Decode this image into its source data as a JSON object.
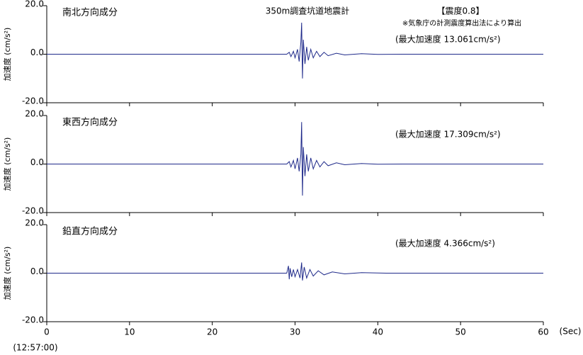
{
  "chart_data": [
    {
      "type": "line",
      "title": "350m調査坑道地震計",
      "intensity": "【震度0.8】",
      "note": "※気象庁の計測震度算出法により算出",
      "panel_title": "南北方向成分",
      "peak_label": "(最大加速度 13.061cm/s²)",
      "ylabel": "加速度 (cm/s²)",
      "color": "#1f2a8a",
      "xlim": [
        0,
        60
      ],
      "xticks": [
        0,
        10,
        20,
        30,
        40,
        50,
        60
      ],
      "x_tick_labels": false,
      "ylim": [
        -20,
        20
      ],
      "yticks": [
        {
          "value": 20,
          "label": "20.0"
        },
        {
          "value": 0,
          "label": "0.0"
        },
        {
          "value": -20,
          "label": "-20.0"
        }
      ],
      "x": [
        0,
        29.0,
        29.3,
        29.5,
        29.8,
        30.0,
        30.3,
        30.5,
        30.7,
        30.8,
        30.9,
        31.0,
        31.2,
        31.4,
        31.6,
        31.9,
        32.2,
        32.6,
        33.0,
        33.5,
        34.0,
        35.0,
        36.0,
        38.0,
        40.0,
        43.0,
        60
      ],
      "values": [
        0,
        0,
        0.8,
        -1,
        1.2,
        -1.5,
        2,
        -3,
        5,
        13,
        -10,
        6,
        -4,
        3,
        -2.5,
        2,
        -1.5,
        1.2,
        -1,
        0.8,
        -0.6,
        0.4,
        -0.3,
        0.2,
        -0.1,
        0,
        0
      ]
    },
    {
      "type": "line",
      "panel_title": "東西方向成分",
      "peak_label": "(最大加速度 17.309cm/s²)",
      "ylabel": "加速度 (cm/s²)",
      "color": "#1f2a8a",
      "xlim": [
        0,
        60
      ],
      "xticks": [
        0,
        10,
        20,
        30,
        40,
        50,
        60
      ],
      "x_tick_labels": false,
      "ylim": [
        -20,
        20
      ],
      "yticks": [
        {
          "value": 20,
          "label": "20.0"
        },
        {
          "value": 0,
          "label": "0.0"
        },
        {
          "value": -20,
          "label": "-20.0"
        }
      ],
      "x": [
        0,
        29.0,
        29.3,
        29.5,
        29.8,
        30.0,
        30.3,
        30.5,
        30.7,
        30.8,
        30.9,
        31.0,
        31.2,
        31.4,
        31.6,
        31.9,
        32.2,
        32.6,
        33.0,
        33.5,
        34.0,
        35.0,
        36.0,
        38.0,
        40.0,
        43.0,
        60
      ],
      "values": [
        0,
        0,
        1,
        -1.2,
        1.5,
        -2,
        2.5,
        -3,
        4,
        17.3,
        -13,
        7,
        -5,
        4,
        -3,
        2.5,
        -2,
        1.5,
        -1.2,
        1,
        -0.7,
        0.5,
        -0.3,
        0.2,
        -0.1,
        0,
        0
      ]
    },
    {
      "type": "line",
      "panel_title": "鉛直方向成分",
      "peak_label": "(最大加速度 4.366cm/s²)",
      "ylabel": "加速度 (cm/s²)",
      "color": "#1f2a8a",
      "xlim": [
        0,
        60
      ],
      "xticks": [
        0,
        10,
        20,
        30,
        40,
        50,
        60
      ],
      "x_tick_labels": true,
      "xlabel": "(Sec)",
      "start_time": "(12:57:00)",
      "ylim": [
        -20,
        20
      ],
      "yticks": [
        {
          "value": 20,
          "label": "20.0"
        },
        {
          "value": 0,
          "label": "0.0"
        },
        {
          "value": -20,
          "label": "-20.0"
        }
      ],
      "x": [
        0,
        29.0,
        29.2,
        29.3,
        29.4,
        29.6,
        29.8,
        30.0,
        30.3,
        30.6,
        30.8,
        30.9,
        31.1,
        31.4,
        31.8,
        32.2,
        32.8,
        33.5,
        34.5,
        36.0,
        38.0,
        41.0,
        60
      ],
      "values": [
        0,
        0,
        3,
        -2.5,
        2,
        -1.5,
        1.5,
        -1.5,
        1.5,
        -2,
        4.4,
        -3,
        2.5,
        -2,
        1.5,
        -1.2,
        1,
        -0.7,
        0.5,
        -0.3,
        0.2,
        0,
        0
      ]
    }
  ]
}
